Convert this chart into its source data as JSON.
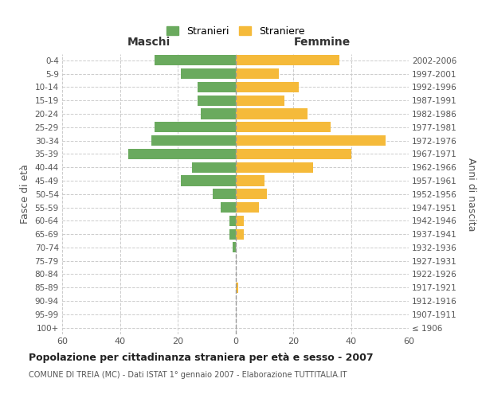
{
  "age_groups": [
    "100+",
    "95-99",
    "90-94",
    "85-89",
    "80-84",
    "75-79",
    "70-74",
    "65-69",
    "60-64",
    "55-59",
    "50-54",
    "45-49",
    "40-44",
    "35-39",
    "30-34",
    "25-29",
    "20-24",
    "15-19",
    "10-14",
    "5-9",
    "0-4"
  ],
  "birth_years": [
    "≤ 1906",
    "1907-1911",
    "1912-1916",
    "1917-1921",
    "1922-1926",
    "1927-1931",
    "1932-1936",
    "1937-1941",
    "1942-1946",
    "1947-1951",
    "1952-1956",
    "1957-1961",
    "1962-1966",
    "1967-1971",
    "1972-1976",
    "1977-1981",
    "1982-1986",
    "1987-1991",
    "1992-1996",
    "1997-2001",
    "2002-2006"
  ],
  "maschi": [
    0,
    0,
    0,
    0,
    0,
    0,
    1,
    2,
    2,
    5,
    8,
    19,
    15,
    37,
    29,
    28,
    12,
    13,
    13,
    19,
    28
  ],
  "femmine": [
    0,
    0,
    0,
    1,
    0,
    0,
    0,
    3,
    3,
    8,
    11,
    10,
    27,
    40,
    52,
    33,
    25,
    17,
    22,
    15,
    36
  ],
  "maschi_color": "#6aaa5e",
  "femmine_color": "#f5ba3a",
  "background_color": "#ffffff",
  "grid_color": "#cccccc",
  "title": "Popolazione per cittadinanza straniera per età e sesso - 2007",
  "subtitle": "COMUNE DI TREIA (MC) - Dati ISTAT 1° gennaio 2007 - Elaborazione TUTTITALIA.IT",
  "ylabel_left": "Fasce di età",
  "ylabel_right": "Anni di nascita",
  "xlabel_maschi": "Maschi",
  "xlabel_femmine": "Femmine",
  "legend_stranieri": "Stranieri",
  "legend_straniere": "Straniere",
  "xlim": 60
}
